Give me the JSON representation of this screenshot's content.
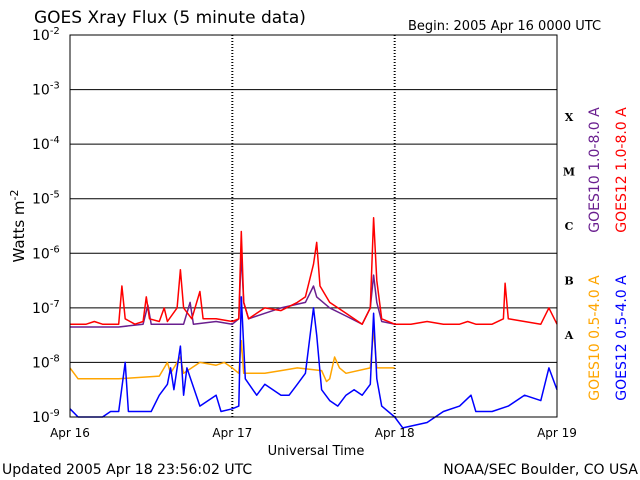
{
  "chart_data": {
    "type": "line",
    "title": "GOES Xray Flux (5 minute data)",
    "begin": "Begin:  2005 Apr 16 0000 UTC",
    "updated": "Updated 2005 Apr 18 23:56:02 UTC",
    "credit": "NOAA/SEC Boulder, CO USA",
    "xlabel": "Universal Time",
    "ylabel": "Watts m",
    "ylabel_sup": "-2",
    "x_unit": "days since Begin",
    "xlim": [
      0,
      3
    ],
    "ylim_log10": [
      -9,
      -2
    ],
    "yscale": "log",
    "grid": "horizontal at each decade; dashed vertical day boundaries",
    "x_ticks": [
      {
        "x": 0,
        "label": "Apr 16"
      },
      {
        "x": 1,
        "label": "Apr 17"
      },
      {
        "x": 2,
        "label": "Apr 18"
      },
      {
        "x": 3,
        "label": "Apr 19"
      }
    ],
    "y_ticks": [
      {
        "exp": -2,
        "base": "10",
        "sup": "-2"
      },
      {
        "exp": -3,
        "base": "10",
        "sup": "-3"
      },
      {
        "exp": -4,
        "base": "10",
        "sup": "-4"
      },
      {
        "exp": -5,
        "base": "10",
        "sup": "-5"
      },
      {
        "exp": -6,
        "base": "10",
        "sup": "-6"
      },
      {
        "exp": -7,
        "base": "10",
        "sup": "-7"
      },
      {
        "exp": -8,
        "base": "10",
        "sup": "-8"
      },
      {
        "exp": -9,
        "base": "10",
        "sup": "-9"
      }
    ],
    "flare_classes": [
      {
        "label": "X",
        "exp": -4
      },
      {
        "label": "M",
        "exp": -5
      },
      {
        "label": "C",
        "exp": -6
      },
      {
        "label": "B",
        "exp": -7
      },
      {
        "label": "A",
        "exp": -8
      }
    ],
    "series": [
      {
        "name": "GOES10 0.5-4.0 A",
        "color": "#ffa500",
        "points": [
          [
            0,
            -8.1
          ],
          [
            0.05,
            -8.3
          ],
          [
            0.3,
            -8.3
          ],
          [
            0.55,
            -8.25
          ],
          [
            0.6,
            -8.0
          ],
          [
            0.62,
            -8.2
          ],
          [
            0.68,
            -7.9
          ],
          [
            0.7,
            -8.2
          ],
          [
            0.8,
            -8.0
          ],
          [
            0.9,
            -8.05
          ],
          [
            0.95,
            -8.0
          ],
          [
            1.0,
            -8.1
          ],
          [
            1.04,
            -8.2
          ],
          [
            1.055,
            -7.6
          ],
          [
            1.07,
            -8.2
          ],
          [
            1.2,
            -8.2
          ],
          [
            1.3,
            -8.15
          ],
          [
            1.4,
            -8.1
          ],
          [
            1.55,
            -8.15
          ],
          [
            1.58,
            -8.35
          ],
          [
            1.6,
            -8.3
          ],
          [
            1.63,
            -7.9
          ],
          [
            1.66,
            -8.1
          ],
          [
            1.7,
            -8.2
          ],
          [
            1.85,
            -8.1
          ],
          [
            1.87,
            -7.4
          ],
          [
            1.89,
            -8.1
          ],
          [
            2.0,
            -8.1
          ]
        ]
      },
      {
        "name": "GOES10 1.0-8.0 A",
        "color": "#6a1f8f",
        "points": [
          [
            0,
            -7.35
          ],
          [
            0.3,
            -7.35
          ],
          [
            0.45,
            -7.3
          ],
          [
            0.48,
            -6.95
          ],
          [
            0.5,
            -7.3
          ],
          [
            0.7,
            -7.3
          ],
          [
            0.74,
            -6.9
          ],
          [
            0.76,
            -7.3
          ],
          [
            0.9,
            -7.25
          ],
          [
            1.0,
            -7.3
          ],
          [
            1.04,
            -7.2
          ],
          [
            1.055,
            -6.0
          ],
          [
            1.07,
            -6.9
          ],
          [
            1.1,
            -7.2
          ],
          [
            1.2,
            -7.1
          ],
          [
            1.3,
            -7.0
          ],
          [
            1.45,
            -6.9
          ],
          [
            1.5,
            -6.6
          ],
          [
            1.52,
            -6.8
          ],
          [
            1.6,
            -7.0
          ],
          [
            1.7,
            -7.15
          ],
          [
            1.8,
            -7.3
          ],
          [
            1.85,
            -7.0
          ],
          [
            1.87,
            -6.4
          ],
          [
            1.89,
            -6.9
          ],
          [
            1.92,
            -7.25
          ],
          [
            2.0,
            -7.3
          ]
        ]
      },
      {
        "name": "GOES12 0.5-4.0 A",
        "color": "#0000ff",
        "points": [
          [
            0,
            -8.85
          ],
          [
            0.05,
            -9.0
          ],
          [
            0.2,
            -9.0
          ],
          [
            0.25,
            -8.9
          ],
          [
            0.3,
            -8.9
          ],
          [
            0.34,
            -8.0
          ],
          [
            0.36,
            -8.9
          ],
          [
            0.5,
            -8.9
          ],
          [
            0.55,
            -8.6
          ],
          [
            0.6,
            -8.4
          ],
          [
            0.62,
            -8.1
          ],
          [
            0.64,
            -8.5
          ],
          [
            0.68,
            -7.7
          ],
          [
            0.7,
            -8.6
          ],
          [
            0.72,
            -8.1
          ],
          [
            0.8,
            -8.8
          ],
          [
            0.9,
            -8.6
          ],
          [
            0.93,
            -8.9
          ],
          [
            1.0,
            -8.85
          ],
          [
            1.04,
            -8.8
          ],
          [
            1.055,
            -6.8
          ],
          [
            1.08,
            -8.3
          ],
          [
            1.15,
            -8.6
          ],
          [
            1.2,
            -8.4
          ],
          [
            1.3,
            -8.6
          ],
          [
            1.35,
            -8.6
          ],
          [
            1.4,
            -8.4
          ],
          [
            1.45,
            -8.2
          ],
          [
            1.5,
            -7.0
          ],
          [
            1.52,
            -7.5
          ],
          [
            1.55,
            -8.5
          ],
          [
            1.6,
            -8.7
          ],
          [
            1.65,
            -8.8
          ],
          [
            1.7,
            -8.6
          ],
          [
            1.75,
            -8.5
          ],
          [
            1.8,
            -8.6
          ],
          [
            1.85,
            -8.4
          ],
          [
            1.87,
            -7.1
          ],
          [
            1.89,
            -8.3
          ],
          [
            1.92,
            -8.8
          ],
          [
            2.0,
            -9.0
          ],
          [
            2.05,
            -9.2
          ],
          [
            2.2,
            -9.1
          ],
          [
            2.3,
            -8.9
          ],
          [
            2.4,
            -8.8
          ],
          [
            2.47,
            -8.6
          ],
          [
            2.5,
            -8.9
          ],
          [
            2.6,
            -8.9
          ],
          [
            2.7,
            -8.8
          ],
          [
            2.8,
            -8.6
          ],
          [
            2.9,
            -8.7
          ],
          [
            2.95,
            -8.1
          ],
          [
            3.0,
            -8.5
          ]
        ]
      },
      {
        "name": "GOES12 1.0-8.0 A",
        "color": "#ff0000",
        "points": [
          [
            0,
            -7.3
          ],
          [
            0.1,
            -7.3
          ],
          [
            0.15,
            -7.25
          ],
          [
            0.2,
            -7.3
          ],
          [
            0.28,
            -7.3
          ],
          [
            0.3,
            -7.3
          ],
          [
            0.32,
            -6.6
          ],
          [
            0.34,
            -7.2
          ],
          [
            0.4,
            -7.3
          ],
          [
            0.45,
            -7.25
          ],
          [
            0.47,
            -6.8
          ],
          [
            0.49,
            -7.2
          ],
          [
            0.55,
            -7.25
          ],
          [
            0.58,
            -7.0
          ],
          [
            0.6,
            -7.25
          ],
          [
            0.66,
            -7.0
          ],
          [
            0.68,
            -6.3
          ],
          [
            0.7,
            -7.0
          ],
          [
            0.75,
            -7.2
          ],
          [
            0.8,
            -6.7
          ],
          [
            0.82,
            -7.2
          ],
          [
            0.9,
            -7.2
          ],
          [
            1.0,
            -7.25
          ],
          [
            1.04,
            -7.2
          ],
          [
            1.055,
            -5.6
          ],
          [
            1.07,
            -6.9
          ],
          [
            1.1,
            -7.2
          ],
          [
            1.15,
            -7.1
          ],
          [
            1.2,
            -7.0
          ],
          [
            1.3,
            -7.05
          ],
          [
            1.4,
            -6.9
          ],
          [
            1.45,
            -6.8
          ],
          [
            1.5,
            -6.2
          ],
          [
            1.52,
            -5.8
          ],
          [
            1.54,
            -6.6
          ],
          [
            1.6,
            -6.9
          ],
          [
            1.7,
            -7.1
          ],
          [
            1.8,
            -7.3
          ],
          [
            1.85,
            -7.0
          ],
          [
            1.87,
            -5.35
          ],
          [
            1.89,
            -6.5
          ],
          [
            1.92,
            -7.2
          ],
          [
            2.0,
            -7.3
          ],
          [
            2.1,
            -7.3
          ],
          [
            2.2,
            -7.25
          ],
          [
            2.3,
            -7.3
          ],
          [
            2.4,
            -7.3
          ],
          [
            2.45,
            -7.25
          ],
          [
            2.5,
            -7.3
          ],
          [
            2.6,
            -7.3
          ],
          [
            2.67,
            -7.2
          ],
          [
            2.68,
            -6.55
          ],
          [
            2.7,
            -7.2
          ],
          [
            2.8,
            -7.25
          ],
          [
            2.9,
            -7.3
          ],
          [
            2.95,
            -7.0
          ],
          [
            3.0,
            -7.3
          ]
        ]
      }
    ]
  }
}
